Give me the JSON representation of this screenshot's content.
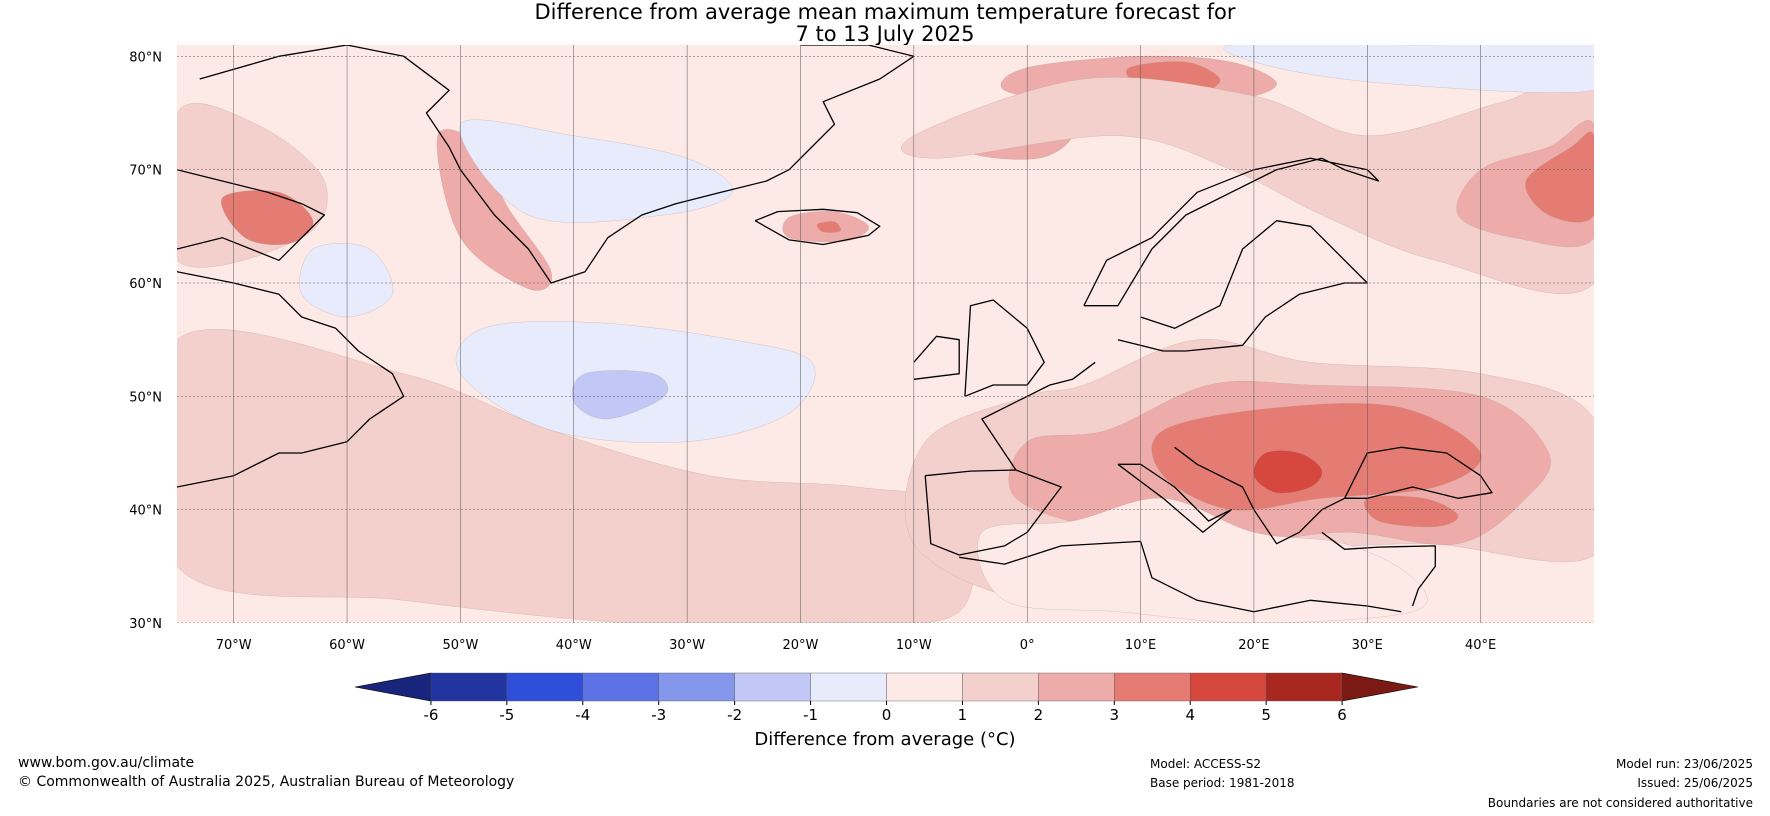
{
  "title_line1": "Difference from average mean maximum temperature forecast for",
  "title_line2": "7 to 13 July 2025",
  "map": {
    "extent": {
      "lon_min": -75,
      "lon_max": 50,
      "lat_min": 30,
      "lat_max": 81
    },
    "lat_ticks": [
      {
        "value": 80,
        "label": "80°N"
      },
      {
        "value": 70,
        "label": "70°N"
      },
      {
        "value": 60,
        "label": "60°N"
      },
      {
        "value": 50,
        "label": "50°N"
      },
      {
        "value": 40,
        "label": "40°N"
      },
      {
        "value": 30,
        "label": "30°N"
      }
    ],
    "lon_ticks": [
      {
        "value": -70,
        "label": "70°W"
      },
      {
        "value": -60,
        "label": "60°W"
      },
      {
        "value": -50,
        "label": "50°W"
      },
      {
        "value": -40,
        "label": "40°W"
      },
      {
        "value": -30,
        "label": "30°W"
      },
      {
        "value": -20,
        "label": "20°W"
      },
      {
        "value": -10,
        "label": "10°W"
      },
      {
        "value": 0,
        "label": "0°"
      },
      {
        "value": 10,
        "label": "10°E"
      },
      {
        "value": 20,
        "label": "20°E"
      },
      {
        "value": 30,
        "label": "30°E"
      },
      {
        "value": 40,
        "label": "40°E"
      }
    ],
    "background_anomaly": 0.5,
    "anomaly_regions": [
      {
        "name": "western-atlantic-warm-band",
        "value": 1.5,
        "lon": [
          -75,
          -55,
          -42,
          -28,
          -15,
          -6,
          -6,
          -18,
          -35,
          -55,
          -75
        ],
        "lat": [
          55,
          52,
          47,
          43,
          42,
          40,
          31,
          30,
          30,
          32,
          35
        ]
      },
      {
        "name": "canada-hudson-warm",
        "value": 1.5,
        "lon": [
          -75,
          -68,
          -62,
          -64,
          -75
        ],
        "lat": [
          75,
          74,
          69,
          64,
          62
        ]
      },
      {
        "name": "baffin-warm-core",
        "value": 3.5,
        "lon": [
          -71,
          -66,
          -63,
          -65,
          -69
        ],
        "lat": [
          67.5,
          68,
          65.5,
          63.5,
          64
        ]
      },
      {
        "name": "greenland-west-coast-warm",
        "value": 2.5,
        "lon": [
          -52,
          -48,
          -46,
          -42,
          -44,
          -50
        ],
        "lat": [
          73,
          72,
          67,
          61,
          59.5,
          64
        ]
      },
      {
        "name": "subpolar-gyre-cool",
        "value": -0.5,
        "lon": [
          -48,
          -38,
          -26,
          -19,
          -21,
          -30,
          -42,
          -50
        ],
        "lat": [
          56,
          56.5,
          55,
          53,
          48.5,
          46,
          47,
          52
        ]
      },
      {
        "name": "subpolar-gyre-cool-core",
        "value": -1.5,
        "lon": [
          -39,
          -33,
          -32,
          -37,
          -40
        ],
        "lat": [
          52,
          52,
          50,
          48,
          49.5
        ]
      },
      {
        "name": "greenland-interior-cool",
        "value": -0.5,
        "lon": [
          -50,
          -40,
          -30,
          -26,
          -32,
          -44
        ],
        "lat": [
          74,
          73,
          71,
          68,
          66,
          66
        ]
      },
      {
        "name": "labrador-sea-cool",
        "value": -0.5,
        "lon": [
          -63,
          -58,
          -56,
          -60,
          -64
        ],
        "lat": [
          63,
          63,
          59,
          57,
          59
        ]
      },
      {
        "name": "iceland-warm",
        "value": 2.5,
        "lon": [
          -21,
          -17,
          -14,
          -16,
          -21
        ],
        "lat": [
          65.8,
          66.3,
          65,
          63.7,
          64
        ]
      },
      {
        "name": "iceland-warm-core",
        "value": 3.5,
        "lon": [
          -18.5,
          -17,
          -16.5,
          -18
        ],
        "lat": [
          65.2,
          65.4,
          64.6,
          64.5
        ]
      },
      {
        "name": "svalbard-warm",
        "value": 2.5,
        "lon": [
          0,
          10,
          18,
          22,
          17,
          5,
          -2
        ],
        "lat": [
          79,
          80,
          79.5,
          77.5,
          76,
          76,
          77
        ]
      },
      {
        "name": "svalbard-warm-core",
        "value": 3.5,
        "lon": [
          9,
          14,
          17,
          15,
          10
        ],
        "lat": [
          79,
          79.5,
          78,
          76.8,
          77.5
        ]
      },
      {
        "name": "norwegian-sea-warm",
        "value": 2.5,
        "lon": [
          -5,
          2,
          4,
          1,
          -5
        ],
        "lat": [
          74,
          75,
          73,
          71,
          71.5
        ]
      },
      {
        "name": "barents-warm",
        "value": 1.5,
        "lon": [
          -10,
          5,
          20,
          30,
          42,
          50,
          50,
          36,
          26,
          18,
          8,
          -8
        ],
        "lat": [
          73,
          78,
          76.5,
          73,
          76,
          78,
          60,
          62,
          66,
          70,
          73,
          71
        ]
      },
      {
        "name": "russia-north-warm",
        "value": 2.5,
        "lon": [
          40,
          46,
          50,
          50,
          43,
          38
        ],
        "lat": [
          70,
          72,
          74,
          64,
          64,
          66
        ]
      },
      {
        "name": "russia-north-warm-core",
        "value": 3.5,
        "lon": [
          44,
          48,
          50,
          50,
          46
        ],
        "lat": [
          69,
          72,
          73,
          66,
          66
        ]
      },
      {
        "name": "arctic-cool",
        "value": -0.5,
        "lon": [
          18,
          35,
          50,
          50,
          33,
          22
        ],
        "lat": [
          81,
          81,
          81,
          77,
          77.5,
          79
        ]
      },
      {
        "name": "iberia-france-warm",
        "value": 1.5,
        "lon": [
          -9,
          0,
          5,
          15,
          25,
          40,
          50,
          50,
          35,
          22,
          12,
          0,
          -10
        ],
        "lat": [
          46,
          50,
          51,
          55,
          53,
          52,
          48,
          36,
          37,
          36,
          33,
          32,
          37
        ]
      },
      {
        "name": "central-europe-warm",
        "value": 2.5,
        "lon": [
          0,
          7,
          16,
          25,
          40,
          46,
          44,
          38,
          28,
          18,
          8,
          -1
        ],
        "lat": [
          46,
          47,
          51,
          51,
          50,
          45,
          41,
          37,
          38,
          37,
          38,
          41
        ]
      },
      {
        "name": "balkans-warm",
        "value": 3.5,
        "lon": [
          12,
          22,
          33,
          40,
          36,
          26,
          18,
          12
        ],
        "lat": [
          47,
          49,
          49,
          45,
          42,
          41,
          40,
          43
        ]
      },
      {
        "name": "balkans-warm-core",
        "value": 4.5,
        "lon": [
          21,
          24,
          26,
          25,
          22,
          20
        ],
        "lat": [
          45,
          45,
          43.5,
          42,
          41.5,
          43
        ]
      },
      {
        "name": "turkey-warm",
        "value": 3.5,
        "lon": [
          30,
          35,
          38,
          36,
          31
        ],
        "lat": [
          41,
          41,
          39.5,
          38.5,
          39
        ]
      },
      {
        "name": "mediterranean-mild",
        "value": 0.5,
        "lon": [
          -4,
          4,
          12,
          20,
          28,
          34,
          34,
          20,
          8,
          -2
        ],
        "lat": [
          38,
          39,
          41,
          38,
          37,
          34,
          31,
          30,
          31,
          32
        ]
      }
    ],
    "contour_colors": {
      "-1.5": "#c1c8f5",
      "-0.5": "#e7ebfc",
      "0.5": "#fdeae7",
      "1.5": "#f4d0cd",
      "2.5": "#edaca9",
      "3.5": "#e47c73",
      "4.5": "#d6473e"
    },
    "coastlines": [
      {
        "name": "greenland-coast",
        "lon": [
          -73,
          -66,
          -60,
          -55,
          -51,
          -53,
          -51,
          -50,
          -47,
          -44,
          -42,
          -39,
          -37,
          -34,
          -31,
          -27,
          -23,
          -21,
          -19,
          -17,
          -18,
          -13,
          -10,
          -14,
          -20
        ],
        "lat": [
          78,
          80,
          81,
          80,
          77,
          75,
          72,
          70,
          66,
          63,
          60,
          61,
          64,
          66,
          67,
          68,
          69,
          70,
          72,
          74,
          76,
          78,
          80,
          81,
          81
        ]
      },
      {
        "name": "baffin-island-coast",
        "lon": [
          -75,
          -71,
          -67,
          -64,
          -62,
          -66,
          -71,
          -75
        ],
        "lat": [
          70,
          69,
          68,
          67,
          66,
          62,
          64,
          63
        ]
      },
      {
        "name": "labrador-coast",
        "lon": [
          -75,
          -70,
          -66,
          -64,
          -61,
          -59,
          -56,
          -55,
          -58,
          -60,
          -64,
          -66,
          -70,
          -75
        ],
        "lat": [
          61,
          60,
          59,
          57,
          56,
          54,
          52,
          50,
          48,
          46,
          45,
          45,
          43,
          42
        ]
      },
      {
        "name": "iceland-coast",
        "lon": [
          -24,
          -22,
          -18,
          -15,
          -13,
          -14,
          -18,
          -21,
          -24
        ],
        "lat": [
          65.5,
          66.3,
          66.5,
          66.2,
          65,
          64.2,
          63.4,
          63.8,
          65.5
        ]
      },
      {
        "name": "norway-coast",
        "lon": [
          5,
          7,
          11,
          15,
          20,
          25,
          30,
          31,
          28,
          26,
          22,
          18,
          14,
          11,
          8,
          5
        ],
        "lat": [
          58,
          62,
          64,
          68,
          70,
          71,
          70,
          69,
          70,
          71,
          70,
          68,
          66,
          63,
          58,
          58
        ]
      },
      {
        "name": "british-isles-coast",
        "lon": [
          -5.5,
          -3,
          0,
          1.5,
          0,
          -3,
          -5,
          -5.5
        ],
        "lat": [
          50,
          51,
          51,
          53,
          56,
          58.5,
          58,
          50
        ]
      },
      {
        "name": "ireland-coast",
        "lon": [
          -10,
          -6,
          -6,
          -8,
          -10
        ],
        "lat": [
          51.5,
          52,
          55,
          55.3,
          53
        ]
      },
      {
        "name": "iberia-coast",
        "lon": [
          -9,
          -8.5,
          -6,
          -2,
          0,
          3,
          -1,
          -5,
          -9
        ],
        "lat": [
          43,
          37,
          36,
          36.8,
          38,
          42,
          43.5,
          43.4,
          43
        ]
      },
      {
        "name": "france-coast",
        "lon": [
          -1,
          -4,
          -2,
          2,
          4,
          6
        ],
        "lat": [
          43.5,
          48,
          49,
          51,
          51.5,
          53
        ]
      },
      {
        "name": "baltic-coast",
        "lon": [
          8,
          12,
          14,
          19,
          21,
          24,
          28,
          30,
          25,
          22,
          19,
          17,
          13,
          10
        ],
        "lat": [
          55,
          54,
          54,
          54.5,
          57,
          59,
          60,
          60,
          65,
          65.5,
          63,
          58,
          56,
          57
        ]
      },
      {
        "name": "italy-coast",
        "lon": [
          8,
          10,
          13,
          16,
          18,
          15.5,
          12,
          8
        ],
        "lat": [
          44,
          44,
          42,
          39,
          40,
          38,
          41,
          44
        ]
      },
      {
        "name": "adriatic-balkan-coast",
        "lon": [
          13,
          15,
          19,
          20,
          22,
          24,
          26,
          28,
          29
        ],
        "lat": [
          45.5,
          44,
          42,
          40,
          37,
          38,
          40,
          41,
          41
        ]
      },
      {
        "name": "black-sea-coast",
        "lon": [
          28,
          30,
          33,
          37,
          40,
          41,
          38,
          34,
          30,
          28
        ],
        "lat": [
          41,
          45,
          45.5,
          45,
          43,
          41.5,
          41,
          42,
          41,
          41
        ]
      },
      {
        "name": "north-africa-coast",
        "lon": [
          -6,
          -2,
          3,
          10,
          11,
          15,
          20,
          25,
          30,
          33
        ],
        "lat": [
          35.8,
          35.2,
          36.8,
          37.2,
          34,
          32,
          31,
          32,
          31.5,
          31
        ]
      },
      {
        "name": "turkey-levant-coast",
        "lon": [
          26,
          28,
          31,
          36,
          36,
          34.5,
          34
        ],
        "lat": [
          38,
          36.5,
          36.7,
          36.8,
          35,
          33,
          31.5
        ]
      }
    ]
  },
  "colorbar": {
    "ticks": [
      -6,
      -5,
      -4,
      -3,
      -2,
      -1,
      0,
      1,
      2,
      3,
      4,
      5,
      6
    ],
    "tick_labels": [
      "-6",
      "-5",
      "-4",
      "-3",
      "-2",
      "-1",
      "0",
      "1",
      "2",
      "3",
      "4",
      "5",
      "6"
    ],
    "colors": [
      "#22349f",
      "#2f4ed9",
      "#5b73e4",
      "#8497ea",
      "#c1c8f5",
      "#e7ebfc",
      "#fdeae7",
      "#f4d0cd",
      "#edaca9",
      "#e47c73",
      "#d6473e",
      "#a82820"
    ],
    "low_extend_color": "#19257c",
    "high_extend_color": "#7b1a15",
    "label": "Difference from average (°C)"
  },
  "footer": {
    "website": "www.bom.gov.au/climate",
    "copyright": "© Commonwealth of Australia 2025, Australian Bureau of Meteorology",
    "model": "Model: ACCESS-S2",
    "base_period": "Base period: 1981-2018",
    "model_run": "Model run: 23/06/2025",
    "issued": "Issued: 25/06/2025",
    "disclaimer": "Boundaries are not considered authoritative"
  }
}
